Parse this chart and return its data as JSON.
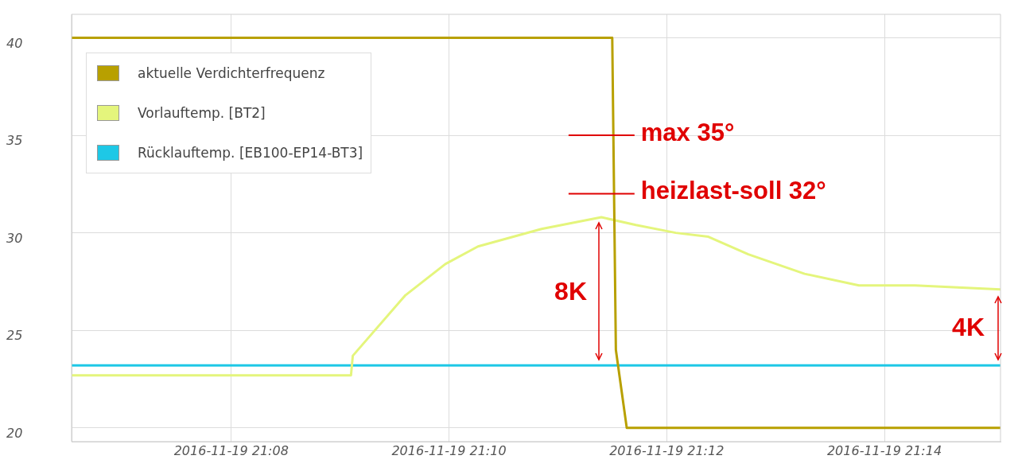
{
  "chart_data": {
    "type": "line",
    "series": [
      {
        "name": "aktuelle Verdichterfrequenz",
        "color": "#b8a000",
        "x": [
          "2016-11-19T21:06:32",
          "2016-11-19T21:11:30",
          "2016-11-19T21:11:32",
          "2016-11-19T21:11:38",
          "2016-11-19T21:15:04"
        ],
        "values": [
          40,
          40,
          24,
          20,
          20
        ]
      },
      {
        "name": "Vorlauftemp. [BT2]",
        "color": "#e4f57c",
        "x": [
          "2016-11-19T21:06:32",
          "2016-11-19T21:09:06",
          "2016-11-19T21:09:07",
          "2016-11-19T21:09:36",
          "2016-11-19T21:09:58",
          "2016-11-19T21:10:16",
          "2016-11-19T21:10:51",
          "2016-11-19T21:11:24",
          "2016-11-19T21:11:43",
          "2016-11-19T21:12:05",
          "2016-11-19T21:12:23",
          "2016-11-19T21:12:45",
          "2016-11-19T21:13:16",
          "2016-11-19T21:13:46",
          "2016-11-19T21:14:17",
          "2016-11-19T21:15:04"
        ],
        "values": [
          22.7,
          22.7,
          23.7,
          26.8,
          28.4,
          29.3,
          30.2,
          30.8,
          30.4,
          30.0,
          29.8,
          28.9,
          27.9,
          27.3,
          27.3,
          27.1
        ]
      },
      {
        "name": "Rücklauftemp. [EB100-EP14-BT3]",
        "color": "#1ec8e6",
        "x": [
          "2016-11-19T21:06:32",
          "2016-11-19T21:12:00",
          "2016-11-19T21:15:04"
        ],
        "values": [
          23.2,
          23.2,
          23.2
        ]
      }
    ],
    "xlim": [
      "2016-11-19T21:06:32",
      "2016-11-19T21:15:04"
    ],
    "xticks": [
      {
        "value": "2016-11-19T21:08",
        "label": "2016-11-19 21:08"
      },
      {
        "value": "2016-11-19T21:10",
        "label": "2016-11-19 21:10"
      },
      {
        "value": "2016-11-19T21:12",
        "label": "2016-11-19 21:12"
      },
      {
        "value": "2016-11-19T21:14",
        "label": "2016-11-19 21:14"
      }
    ],
    "ylim": [
      19.3,
      41.2
    ],
    "yticks": [
      20,
      25,
      30,
      35,
      40
    ],
    "grid": true,
    "legend": "top left",
    "marker": "none",
    "line_style": "solid",
    "ref_lines": [
      {
        "axis": "y",
        "value": 35,
        "label": "max 35°",
        "color": "#e00000"
      },
      {
        "axis": "y",
        "value": 32,
        "label": "heizlast-soll 32°",
        "color": "#e00000"
      }
    ],
    "annotations": [
      "8K",
      "4K"
    ]
  }
}
